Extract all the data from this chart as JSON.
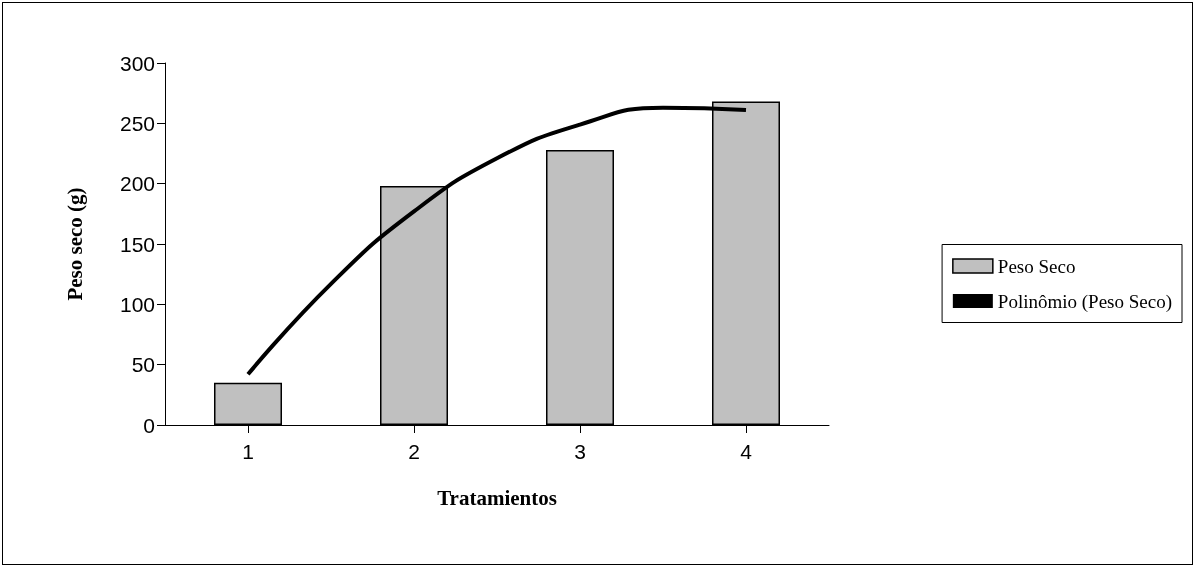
{
  "chart_data": {
    "type": "bar",
    "xlabel": "Tratamientos",
    "ylabel": "Peso seco (g)",
    "x": [
      1,
      2,
      3,
      4
    ],
    "xlim": [
      0.5,
      4.5
    ],
    "xticks": [
      1,
      2,
      3,
      4
    ],
    "ylim": [
      0,
      300
    ],
    "yticks": [
      0,
      50,
      100,
      150,
      200,
      250,
      300
    ],
    "grid": false,
    "legend": "right",
    "marker": "none",
    "series": [
      {
        "name": "Peso Seco",
        "color": "#c0c0c0",
        "values": [
          35,
          198,
          228,
          268
        ]
      },
      {
        "name": "Polinômio (Peso Seco)",
        "type": "line",
        "color": "#000000",
        "line_style": "solid",
        "x": [
          1,
          1.5,
          2,
          2.5,
          3,
          3.5,
          4
        ],
        "values": [
          42,
          117,
          177,
          221,
          249,
          263,
          261
        ]
      }
    ]
  }
}
